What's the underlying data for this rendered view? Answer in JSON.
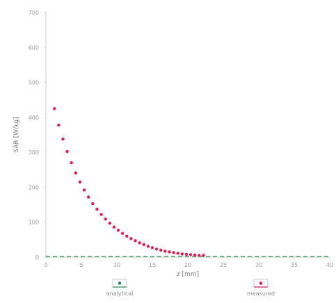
{
  "chart_data": {
    "type": "scatter",
    "title": "",
    "xlabel": "z [mm]",
    "ylabel": "SAR [W/kg]",
    "xlim": [
      0,
      40
    ],
    "ylim": [
      0,
      700
    ],
    "xticks": [
      "0",
      "5",
      "10",
      "15",
      "20",
      "25",
      "30",
      "35",
      "40"
    ],
    "yticks": [
      "0",
      "100",
      "200",
      "300",
      "400",
      "500",
      "600",
      "700"
    ],
    "grid": false,
    "legend": {
      "placement": "bottom"
    },
    "series": [
      {
        "name": "analytical",
        "color": "#2e8b57",
        "marker": "line",
        "x": [
          0,
          5,
          10,
          15,
          20,
          25,
          30,
          35,
          40
        ],
        "y": [
          0,
          0,
          0,
          0,
          0,
          0,
          0,
          0,
          0
        ]
      },
      {
        "name": "measured",
        "color": "#d62055",
        "marker": "circle",
        "x": [
          1.2,
          1.8,
          2.4,
          3.0,
          3.6,
          4.2,
          4.8,
          5.4,
          6.0,
          6.6,
          7.2,
          7.8,
          8.4,
          9.0,
          9.6,
          10.2,
          10.8,
          11.4,
          12.0,
          12.6,
          13.2,
          13.8,
          14.4,
          15.0,
          15.6,
          16.2,
          16.8,
          17.4,
          18.0,
          18.6,
          19.2,
          19.8,
          20.4,
          21.0,
          21.6,
          22.2
        ],
        "y": [
          425,
          378,
          338,
          302,
          270,
          241,
          215,
          192,
          172,
          153,
          137,
          122,
          109,
          97,
          86,
          77,
          68,
          60,
          53,
          47,
          41,
          36,
          31,
          27,
          23,
          20,
          17,
          15,
          13,
          11,
          9,
          8,
          7,
          6,
          5,
          5
        ]
      }
    ]
  }
}
